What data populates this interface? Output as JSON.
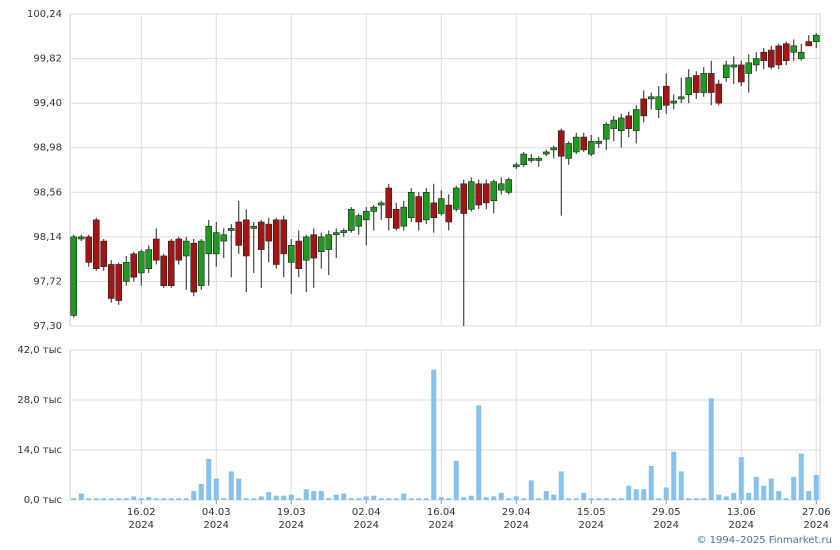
{
  "chart_data": [
    {
      "type": "candlestick",
      "ylim": [
        97.3,
        100.24
      ],
      "yticks": [
        {
          "value": 97.3,
          "label": "97,30"
        },
        {
          "value": 97.72,
          "label": "97,72"
        },
        {
          "value": 98.14,
          "label": "98,14"
        },
        {
          "value": 98.56,
          "label": "98,56"
        },
        {
          "value": 98.98,
          "label": "98,98"
        },
        {
          "value": 99.4,
          "label": "99,40"
        },
        {
          "value": 99.82,
          "label": "99,82"
        },
        {
          "value": 100.24,
          "label": "100,24"
        }
      ],
      "grid": true,
      "up_color": "#1f9a1f",
      "down_color": "#a31515",
      "open": [
        97.4,
        98.12,
        98.14,
        98.3,
        98.1,
        97.88,
        97.88,
        97.72,
        97.98,
        97.8,
        97.84,
        98.12,
        97.96,
        98.1,
        98.12,
        97.96,
        98.08,
        97.68,
        97.98,
        97.98,
        98.1,
        98.2,
        98.28,
        98.3,
        98.22,
        98.28,
        98.26,
        98.3,
        98.3,
        97.9,
        98.1,
        97.92,
        98.16,
        98.0,
        98.02,
        98.16,
        98.18,
        98.2,
        98.24,
        98.3,
        98.38,
        98.44,
        98.6,
        98.4,
        98.24,
        98.32,
        98.52,
        98.3,
        98.46,
        98.36,
        98.44,
        98.4,
        98.64,
        98.4,
        98.64,
        98.64,
        98.48,
        98.58,
        98.56,
        98.8,
        98.82,
        98.86,
        98.86,
        98.92,
        98.96,
        99.14,
        98.88,
        98.94,
        99.08,
        98.92,
        99.02,
        99.06,
        99.16,
        99.14,
        99.28,
        99.14,
        99.44,
        99.44,
        99.34,
        99.56,
        99.4,
        99.44,
        99.48,
        99.66,
        99.5,
        99.68,
        99.58,
        99.64,
        99.74,
        99.76,
        99.68,
        99.76,
        99.88,
        99.9,
        99.94,
        99.96,
        99.88,
        99.82,
        99.98,
        99.98
      ],
      "high": [
        98.16,
        98.16,
        98.16,
        98.32,
        98.12,
        97.92,
        97.9,
        97.96,
        98.0,
        98.02,
        98.06,
        98.22,
        97.98,
        98.12,
        98.14,
        98.14,
        98.12,
        98.12,
        98.3,
        98.28,
        98.22,
        98.26,
        98.48,
        98.4,
        98.28,
        98.3,
        98.32,
        98.32,
        98.34,
        98.12,
        98.2,
        98.16,
        98.22,
        98.18,
        98.2,
        98.22,
        98.22,
        98.42,
        98.36,
        98.42,
        98.44,
        98.48,
        98.64,
        98.46,
        98.48,
        98.6,
        98.56,
        98.6,
        98.64,
        98.58,
        98.54,
        98.62,
        98.68,
        98.7,
        98.68,
        98.68,
        98.68,
        98.7,
        98.7,
        98.84,
        98.94,
        98.92,
        98.9,
        98.96,
        99.0,
        99.16,
        99.04,
        99.12,
        99.12,
        99.1,
        99.08,
        99.22,
        99.28,
        99.3,
        99.32,
        99.38,
        99.52,
        99.5,
        99.56,
        99.68,
        99.48,
        99.64,
        99.72,
        99.7,
        99.74,
        99.8,
        99.62,
        99.8,
        99.84,
        99.8,
        99.86,
        99.88,
        99.92,
        99.94,
        99.96,
        99.98,
        100.0,
        99.96,
        100.04,
        100.06
      ],
      "low": [
        97.38,
        98.1,
        97.86,
        97.82,
        97.82,
        97.52,
        97.5,
        97.68,
        97.72,
        97.68,
        97.8,
        97.88,
        97.66,
        97.66,
        97.88,
        97.64,
        97.58,
        97.64,
        97.68,
        97.86,
        97.94,
        97.76,
        97.98,
        97.62,
        97.8,
        97.66,
        97.9,
        97.84,
        97.76,
        97.6,
        97.76,
        97.62,
        97.66,
        97.84,
        97.78,
        97.94,
        98.14,
        98.18,
        98.16,
        98.06,
        98.2,
        98.3,
        98.2,
        98.2,
        98.2,
        98.28,
        98.2,
        98.26,
        98.18,
        98.34,
        98.2,
        98.38,
        97.3,
        98.38,
        98.4,
        98.4,
        98.36,
        98.54,
        98.54,
        98.78,
        98.8,
        98.84,
        98.8,
        98.9,
        98.88,
        98.34,
        98.82,
        98.92,
        98.94,
        98.9,
        98.98,
        98.96,
        99.04,
        98.98,
        99.08,
        99.02,
        99.22,
        99.34,
        99.26,
        99.3,
        99.34,
        99.4,
        99.4,
        99.44,
        99.46,
        99.38,
        99.38,
        99.6,
        99.58,
        99.56,
        99.5,
        99.7,
        99.72,
        99.72,
        99.72,
        99.76,
        99.8,
        99.8,
        99.94,
        99.92
      ],
      "close": [
        98.14,
        98.14,
        97.9,
        97.84,
        97.86,
        97.56,
        97.54,
        97.9,
        97.76,
        98.0,
        98.02,
        97.92,
        97.68,
        97.68,
        97.92,
        98.1,
        97.62,
        98.1,
        98.24,
        98.18,
        98.16,
        98.22,
        98.06,
        97.96,
        98.24,
        98.02,
        98.1,
        97.88,
        97.98,
        98.06,
        97.84,
        98.14,
        97.94,
        98.14,
        98.16,
        98.18,
        98.2,
        98.4,
        98.34,
        98.38,
        98.42,
        98.46,
        98.32,
        98.22,
        98.42,
        98.56,
        98.28,
        98.56,
        98.32,
        98.5,
        98.28,
        98.6,
        98.36,
        98.66,
        98.44,
        98.46,
        98.66,
        98.64,
        98.68,
        98.82,
        98.92,
        98.88,
        98.88,
        98.94,
        98.98,
        98.9,
        99.02,
        99.08,
        98.96,
        99.04,
        99.04,
        99.2,
        99.24,
        99.26,
        99.16,
        99.34,
        99.28,
        99.46,
        99.46,
        99.38,
        99.42,
        99.46,
        99.64,
        99.5,
        99.68,
        99.5,
        99.4,
        99.76,
        99.76,
        99.6,
        99.78,
        99.82,
        99.8,
        99.74,
        99.76,
        99.8,
        99.94,
        99.88,
        99.94,
        100.04
      ]
    },
    {
      "type": "bar",
      "ylim": [
        0,
        42
      ],
      "yticks": [
        {
          "value": 0,
          "label": "0,0 тыс"
        },
        {
          "value": 14,
          "label": "14,0 тыс"
        },
        {
          "value": 28,
          "label": "28,0 тыс"
        },
        {
          "value": 42,
          "label": "42,0 тыс"
        }
      ],
      "grid": true,
      "color": "#86c2ee",
      "categories": [
        null,
        null,
        null,
        null,
        null,
        null,
        null,
        null,
        null,
        "16.02\n2024",
        null,
        null,
        null,
        null,
        null,
        null,
        null,
        null,
        null,
        "04.03\n2024",
        null,
        null,
        null,
        null,
        null,
        null,
        null,
        null,
        null,
        "19.03\n2024",
        null,
        null,
        null,
        null,
        null,
        null,
        null,
        null,
        null,
        "02.04\n2024",
        null,
        null,
        null,
        null,
        null,
        null,
        null,
        null,
        null,
        "16.04\n2024",
        null,
        null,
        null,
        null,
        null,
        null,
        null,
        null,
        null,
        "29.04\n2024",
        null,
        null,
        null,
        null,
        null,
        null,
        null,
        null,
        null,
        "15.05\n2024",
        null,
        null,
        null,
        null,
        null,
        null,
        null,
        null,
        null,
        "29.05\n2024",
        null,
        null,
        null,
        null,
        null,
        null,
        null,
        null,
        null,
        "13.06\n2024",
        null,
        null,
        null,
        null,
        null,
        null,
        null,
        null,
        null,
        "27.06\n2024"
      ],
      "values": [
        0.5,
        1.8,
        0.5,
        0.5,
        0.5,
        0.5,
        0.5,
        0.5,
        1.0,
        0.5,
        0.8,
        0.5,
        0.5,
        0.5,
        0.5,
        0.5,
        2.5,
        4.5,
        11.5,
        6.0,
        0.5,
        8.0,
        6.0,
        0.5,
        0.5,
        1.0,
        2.2,
        1.2,
        1.2,
        1.5,
        0.5,
        3.0,
        2.5,
        2.5,
        0.5,
        1.5,
        1.8,
        0.5,
        0.5,
        1.0,
        1.2,
        0.5,
        0.5,
        0.5,
        1.8,
        0.5,
        0.5,
        0.5,
        36.5,
        0.8,
        0.5,
        11.0,
        0.8,
        1.2,
        26.5,
        0.8,
        1.0,
        2.0,
        0.5,
        1.0,
        0.5,
        5.5,
        0.5,
        2.5,
        1.5,
        8.0,
        0.5,
        0.5,
        2.0,
        0.5,
        0.5,
        0.5,
        0.5,
        0.5,
        4.0,
        3.0,
        3.0,
        9.5,
        0.5,
        3.5,
        13.5,
        8.0,
        0.5,
        0.5,
        0.5,
        28.5,
        1.5,
        1.0,
        2.0,
        12.0,
        2.0,
        6.5,
        4.0,
        6.0,
        2.5,
        0.5,
        6.5,
        13.0,
        2.5,
        7.0
      ]
    }
  ],
  "footer": "© 1994–2025 Finmarket.ru"
}
